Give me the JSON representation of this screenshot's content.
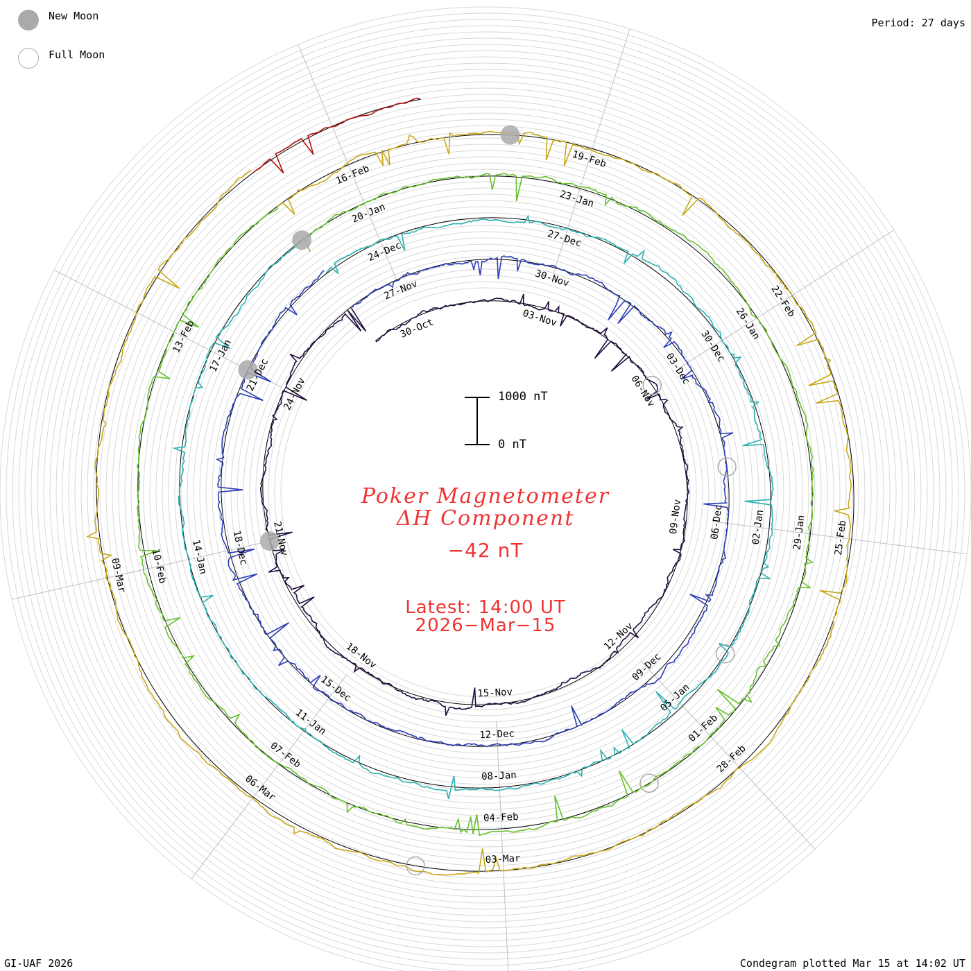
{
  "header": {
    "legend_new_moon": "New Moon",
    "legend_full_moon": "Full Moon",
    "period": "Period: 27 days"
  },
  "center": {
    "title_line1": "Poker Magnetometer",
    "title_line2": "ΔH Component",
    "current_value": "−42 nT",
    "latest_label": "Latest: 14:00 UT",
    "latest_date": "2026−Mar−15",
    "scale_top": "1000 nT",
    "scale_bottom": "0 nT"
  },
  "footer": {
    "credit": "GI-UAF 2026",
    "plotted": "Condegram plotted Mar 15 at 14:02 UT"
  },
  "chart_data": {
    "type": "line",
    "subtype": "spiral condegram",
    "period_days": 27,
    "units": "nT",
    "scale_bar_nT": [
      0,
      1000
    ],
    "series": [
      {
        "color": "#1e0a3c",
        "labels": [
          "30-Oct",
          "03-Nov",
          "06-Nov",
          "09-Nov",
          "12-Nov",
          "15-Nov",
          "18-Nov",
          "21-Nov",
          "24-Nov"
        ],
        "start_date": "2025-10-29",
        "end_date": "2025-11-25"
      },
      {
        "color": "#2c3cb4",
        "labels": [
          "27-Nov",
          "30-Nov",
          "03-Dec",
          "06-Dec",
          "09-Dec",
          "12-Dec",
          "15-Dec",
          "18-Dec",
          "21-Dec"
        ],
        "start_date": "2025-11-25",
        "end_date": "2025-12-22"
      },
      {
        "color": "#2ab0b0",
        "labels": [
          "24-Dec",
          "27-Dec",
          "30-Dec",
          "02-Jan",
          "05-Jan",
          "08-Jan",
          "11-Jan",
          "14-Jan",
          "17-Jan"
        ],
        "start_date": "2025-12-22",
        "end_date": "2026-01-18"
      },
      {
        "color": "#66c02a",
        "labels": [
          "20-Jan",
          "23-Jan",
          "26-Jan",
          "29-Jan",
          "01-Feb",
          "04-Feb",
          "07-Feb",
          "10-Feb",
          "13-Feb"
        ],
        "start_date": "2026-01-18",
        "end_date": "2026-02-14"
      },
      {
        "color": "#c8a818",
        "labels": [
          "16-Feb",
          "19-Feb",
          "22-Feb",
          "25-Feb",
          "28-Feb",
          "03-Mar",
          "06-Mar",
          "09-Mar"
        ],
        "start_date": "2026-02-14",
        "end_date": "2026-03-13"
      },
      {
        "color": "#b01010",
        "labels": [],
        "start_date": "2026-03-13",
        "end_date": "2026-03-15"
      }
    ],
    "new_moons": [
      "2025-11-20",
      "2025-12-20",
      "2026-01-18",
      "2026-02-17"
    ],
    "full_moons": [
      "2025-11-05",
      "2025-12-04",
      "2026-01-03",
      "2026-02-01",
      "2026-03-03"
    ],
    "current_value_nT": -42
  }
}
